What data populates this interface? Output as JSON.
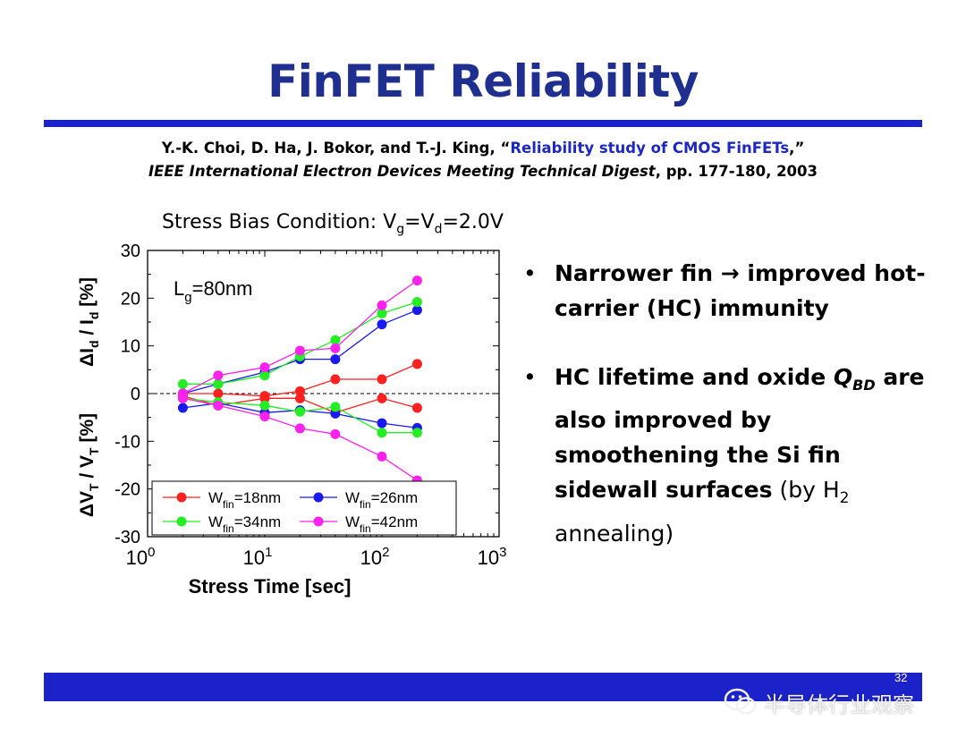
{
  "slide": {
    "title": "FinFET Reliability",
    "page_number": "32"
  },
  "citation": {
    "authors": "Y.-K. Choi, D. Ha, J. Bokor, and T.-J. King, ",
    "open_quote": "“",
    "paper_title": "Reliability study of CMOS FinFETs",
    "close": ",”",
    "venue": "IEEE International Electron Devices Meeting Technical Digest",
    "pages": ", pp. 177-180, 2003"
  },
  "stress_condition": {
    "prefix": "Stress Bias Condition: V",
    "sub_g": "g",
    "mid": "=V",
    "sub_d": "d",
    "suffix": "=2.0V"
  },
  "bullets": {
    "b1_part1": "Narrower fin ",
    "b1_arrow": "→",
    "b1_part2": " improved hot-carrier (HC) immunity",
    "b2_bold1": "HC lifetime and oxide ",
    "b2_q": "Q",
    "b2_q_sub": "BD",
    "b2_bold2": " are also improved by smoothening the Si fin sidewall surfaces",
    "b2_normal1": " (by H",
    "b2_sub2": "2",
    "b2_normal2": " annealing)"
  },
  "watermark": {
    "text": "半导体行业观察",
    "icon": "wechat-icon"
  },
  "colors": {
    "title": "#1f2f8f",
    "bar": "#1c22c9",
    "citation_title": "#1c28c0"
  },
  "chart_data": {
    "type": "line",
    "xscale": "log",
    "xlim": [
      1,
      1000
    ],
    "ylim": [
      -30,
      30
    ],
    "x_ticks": [
      {
        "base": "10",
        "exp": "0"
      },
      {
        "base": "10",
        "exp": "1"
      },
      {
        "base": "10",
        "exp": "2"
      },
      {
        "base": "10",
        "exp": "3"
      }
    ],
    "y_ticks": [
      "30",
      "20",
      "10",
      "0",
      "-10",
      "-20",
      "-30"
    ],
    "xlabel": "Stress Time [sec]",
    "ylabel_upper": {
      "a": "ΔI",
      "sub1": "d",
      "b": " / I",
      "sub2": "d",
      "c": " [%]"
    },
    "ylabel_lower": {
      "a": "ΔV",
      "sub1": "T",
      "b": " / V",
      "sub2": "T",
      "c": " [%]"
    },
    "annotation": {
      "main": "L",
      "sub": "g",
      "rest": "=80nm"
    },
    "zero_line": "dashed",
    "legend_position": "bottom-left",
    "x": [
      2,
      4,
      10,
      20,
      40,
      100,
      200
    ],
    "series": [
      {
        "name": "W_fin=18nm",
        "label_main": "W",
        "label_sub": "fin",
        "label_rest": "=18nm",
        "color": "#ff2020",
        "upper": [
          0,
          0,
          -0.5,
          0.5,
          3,
          3,
          6.2
        ],
        "lower": [
          -0.5,
          -2.5,
          -1,
          -1,
          -4,
          -1,
          -3
        ]
      },
      {
        "name": "W_fin=26nm",
        "label_main": "W",
        "label_sub": "fin",
        "label_rest": "=26nm",
        "color": "#1a1aee",
        "upper": [
          0,
          2,
          4.5,
          7.2,
          7.2,
          14.5,
          17.5
        ],
        "lower": [
          -3,
          -2,
          -4,
          -3.5,
          -4.2,
          -6.2,
          -7.2
        ]
      },
      {
        "name": "W_fin=34nm",
        "label_main": "W",
        "label_sub": "fin",
        "label_rest": "=34nm",
        "color": "#22ee22",
        "upper": [
          2,
          2,
          3.8,
          7.8,
          11.2,
          16.8,
          19.2
        ],
        "lower": [
          -1,
          -1.8,
          -2.5,
          -3.8,
          -2.8,
          -8.2,
          -8.2
        ]
      },
      {
        "name": "W_fin=42nm",
        "label_main": "W",
        "label_sub": "fin",
        "label_rest": "=42nm",
        "color": "#ff22ee",
        "upper": [
          0,
          3.8,
          5.5,
          9,
          9.5,
          18.5,
          23.7
        ],
        "lower": [
          -1,
          -2.5,
          -4.8,
          -7.3,
          -8.5,
          -13.2,
          -18.2
        ]
      }
    ]
  }
}
